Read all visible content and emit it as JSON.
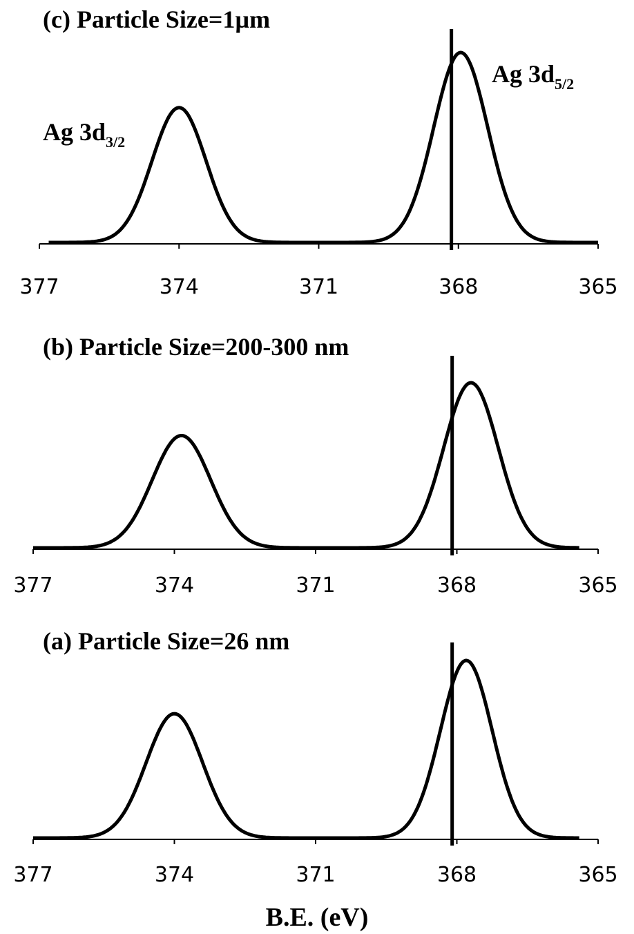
{
  "figure": {
    "xlabel": "B.E. (eV)"
  },
  "peak_labels": {
    "ag3d32": {
      "main": "Ag 3d",
      "sub": "3/2"
    },
    "ag3d52": {
      "main": "Ag 3d",
      "sub": "5/2"
    }
  },
  "chart_data": [
    {
      "type": "line",
      "title": "(c) Particle Size=1µm",
      "xlim": [
        377,
        365
      ],
      "xticks": [
        377,
        374,
        371,
        368,
        365
      ],
      "reference_line": 368.15,
      "series": [
        {
          "x": [
            376.8,
            374.0,
            367.95,
            365.0
          ],
          "peaks": [
            {
              "center": 374.0,
              "height": 0.71,
              "width": 0.58
            },
            {
              "center": 367.95,
              "height": 1.0,
              "width": 0.58
            }
          ]
        }
      ]
    },
    {
      "type": "line",
      "title": "(b) Particle Size=200-300 nm",
      "xlim": [
        377,
        365
      ],
      "xticks": [
        377,
        374,
        371,
        368,
        365
      ],
      "reference_line": 368.1,
      "series": [
        {
          "x": [
            377.0,
            373.85,
            367.7,
            365.4
          ],
          "peaks": [
            {
              "center": 373.85,
              "height": 0.68,
              "width": 0.62
            },
            {
              "center": 367.7,
              "height": 1.0,
              "width": 0.58
            }
          ]
        }
      ]
    },
    {
      "type": "line",
      "title": "(a) Particle Size=26 nm",
      "xlim": [
        377,
        365
      ],
      "xticks": [
        377,
        374,
        371,
        368,
        365
      ],
      "reference_line": 368.1,
      "series": [
        {
          "x": [
            377.0,
            374.0,
            367.8,
            365.4
          ],
          "peaks": [
            {
              "center": 374.0,
              "height": 0.7,
              "width": 0.6
            },
            {
              "center": 367.8,
              "height": 1.0,
              "width": 0.55
            }
          ]
        }
      ]
    }
  ]
}
